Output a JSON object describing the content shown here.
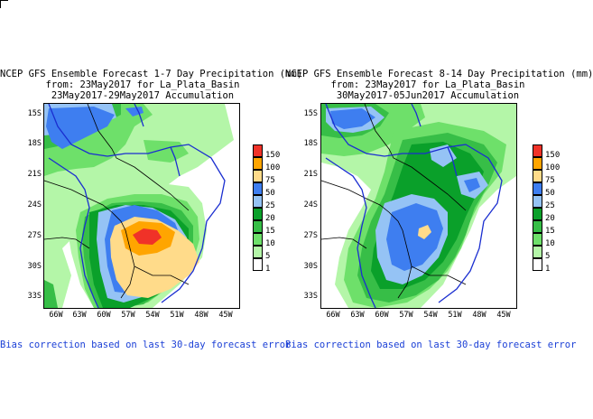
{
  "legend": {
    "levels": [
      "150",
      "100",
      "75",
      "50",
      "25",
      "20",
      "15",
      "10",
      "5",
      "1"
    ],
    "colors": [
      "#f03228",
      "#ffa500",
      "#ffdb8a",
      "#3e7ef0",
      "#95c3f5",
      "#0aa02a",
      "#37be47",
      "#6ee06a",
      "#b4f6a8",
      "#ffffff"
    ]
  },
  "axes": {
    "ylabels": [
      "15S",
      "18S",
      "21S",
      "24S",
      "27S",
      "30S",
      "33S"
    ],
    "xlabels": [
      "66W",
      "63W",
      "60W",
      "57W",
      "54W",
      "51W",
      "48W",
      "45W"
    ]
  },
  "panels": [
    {
      "title1": "NCEP GFS Ensemble Forecast 1-7 Day Precipitation (mm)",
      "title2": "from: 23May2017   for La_Plata_Basin",
      "title3": "23May2017-29May2017 Accumulation",
      "bias_note": "Bias correction based on last 30-day forecast error"
    },
    {
      "title1": "NCEP GFS Ensemble Forecast 8-14 Day Precipitation (mm)",
      "title2": "from: 23May2017   for La_Plata_Basin",
      "title3": "30May2017-05Jun2017 Accumulation",
      "bias_note": "Bias correction based on last 30-day forecast error"
    }
  ],
  "colors": {
    "basin_outline": "#1a2ed0",
    "bias_text": "#1a3fd6"
  }
}
